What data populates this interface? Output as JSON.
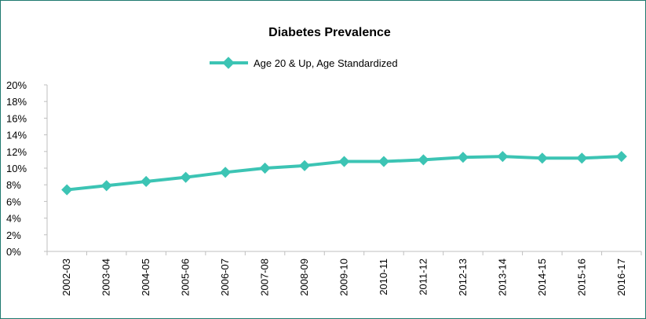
{
  "chart_data": {
    "type": "line",
    "title": "Diabetes Prevalence",
    "xlabel": "",
    "ylabel": "",
    "categories": [
      "2002-03",
      "2003-04",
      "2004-05",
      "2005-06",
      "2006-07",
      "2007-08",
      "2008-09",
      "2009-10",
      "2010-11",
      "2011-12",
      "2012-13",
      "2013-14",
      "2014-15",
      "2015-16",
      "2016-17"
    ],
    "series": [
      {
        "name": "Age 20 & Up, Age Standardized",
        "color": "#3cc4b4",
        "values": [
          7.4,
          7.9,
          8.4,
          8.9,
          9.5,
          10.0,
          10.3,
          10.8,
          10.8,
          11.0,
          11.3,
          11.4,
          11.2,
          11.2,
          11.4
        ]
      }
    ],
    "ylim": [
      0,
      20
    ],
    "yticks": [
      "0%",
      "2%",
      "4%",
      "6%",
      "8%",
      "10%",
      "12%",
      "14%",
      "16%",
      "18%",
      "20%"
    ],
    "grid": false,
    "legend_position": "top"
  }
}
